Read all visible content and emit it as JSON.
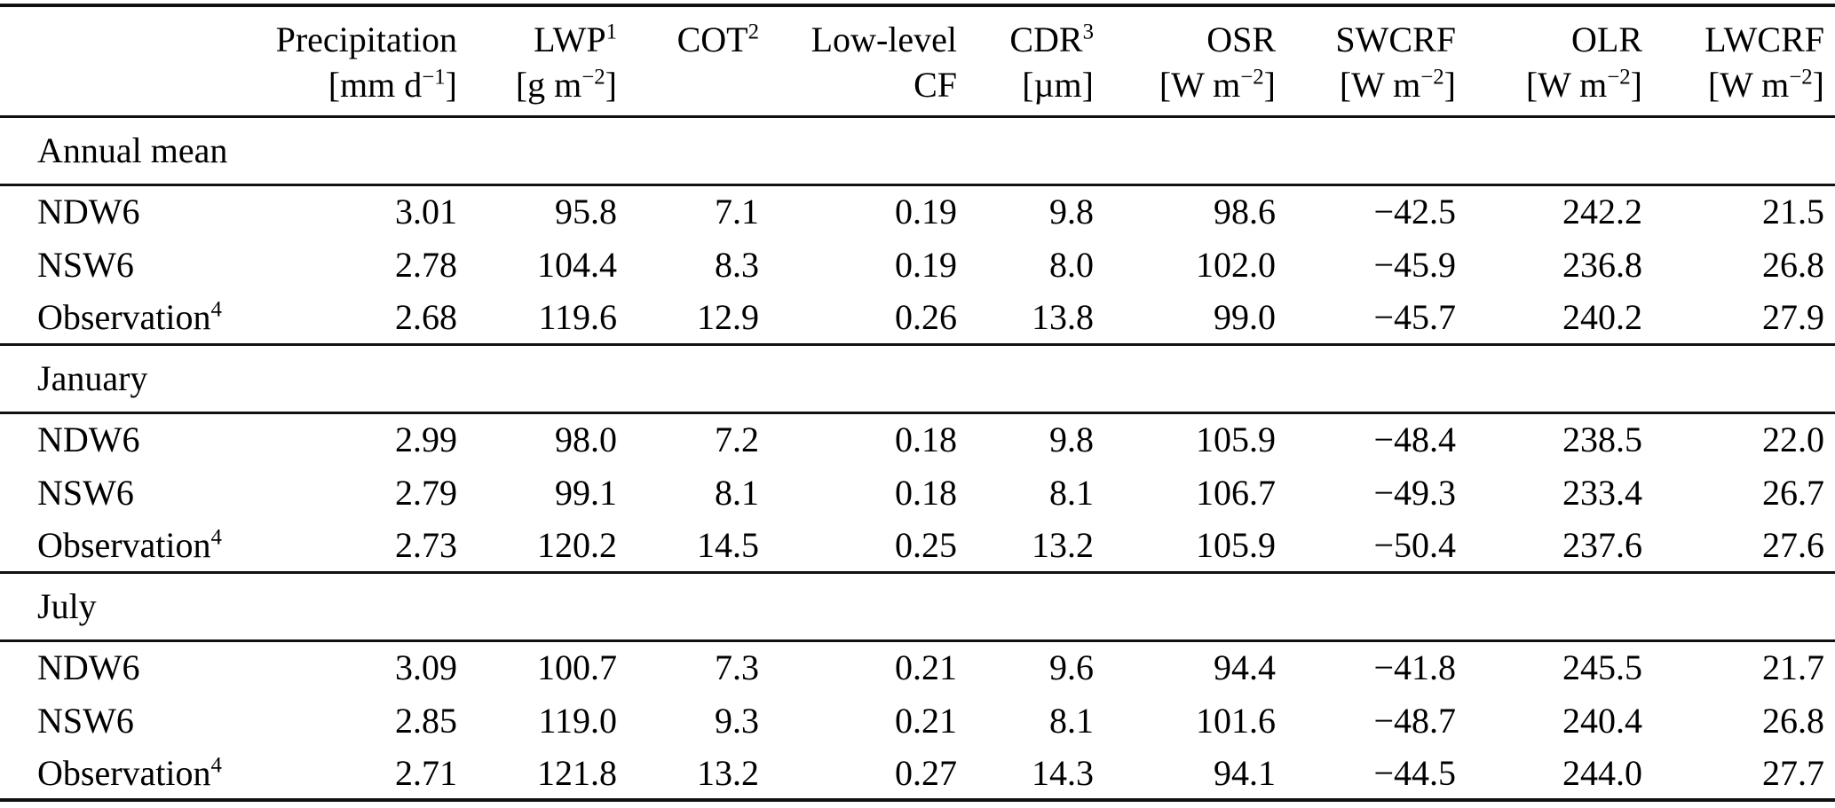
{
  "table": {
    "columns": [
      {
        "label": "",
        "unit": ""
      },
      {
        "label": "Precipitation",
        "unit": "[mm d<sup>−1</sup>]"
      },
      {
        "label": "LWP<sup>1</sup>",
        "unit": "[g m<sup>−2</sup>]"
      },
      {
        "label": "COT<sup>2</sup>",
        "unit": ""
      },
      {
        "label": "Low-level",
        "unit": "CF"
      },
      {
        "label": "CDR<sup>3</sup>",
        "unit": "[µm]"
      },
      {
        "label": "OSR",
        "unit": "[W m<sup>−2</sup>]"
      },
      {
        "label": "SWCRF",
        "unit": "[W m<sup>−2</sup>]"
      },
      {
        "label": "OLR",
        "unit": "[W m<sup>−2</sup>]"
      },
      {
        "label": "LWCRF",
        "unit": "[W m<sup>−2</sup>]"
      }
    ],
    "sections": [
      {
        "heading": "Annual mean",
        "rows": [
          {
            "label": "NDW6",
            "values": [
              "3.01",
              "95.8",
              "7.1",
              "0.19",
              "9.8",
              "98.6",
              "−42.5",
              "242.2",
              "21.5"
            ]
          },
          {
            "label": "NSW6",
            "values": [
              "2.78",
              "104.4",
              "8.3",
              "0.19",
              "8.0",
              "102.0",
              "−45.9",
              "236.8",
              "26.8"
            ]
          },
          {
            "label": "Observation<sup>4</sup>",
            "values": [
              "2.68",
              "119.6",
              "12.9",
              "0.26",
              "13.8",
              "99.0",
              "−45.7",
              "240.2",
              "27.9"
            ]
          }
        ]
      },
      {
        "heading": "January",
        "rows": [
          {
            "label": "NDW6",
            "values": [
              "2.99",
              "98.0",
              "7.2",
              "0.18",
              "9.8",
              "105.9",
              "−48.4",
              "238.5",
              "22.0"
            ]
          },
          {
            "label": "NSW6",
            "values": [
              "2.79",
              "99.1",
              "8.1",
              "0.18",
              "8.1",
              "106.7",
              "−49.3",
              "233.4",
              "26.7"
            ]
          },
          {
            "label": "Observation<sup>4</sup>",
            "values": [
              "2.73",
              "120.2",
              "14.5",
              "0.25",
              "13.2",
              "105.9",
              "−50.4",
              "237.6",
              "27.6"
            ]
          }
        ]
      },
      {
        "heading": "July",
        "rows": [
          {
            "label": "NDW6",
            "values": [
              "3.09",
              "100.7",
              "7.3",
              "0.21",
              "9.6",
              "94.4",
              "−41.8",
              "245.5",
              "21.7"
            ]
          },
          {
            "label": "NSW6",
            "values": [
              "2.85",
              "119.0",
              "9.3",
              "0.21",
              "8.1",
              "101.6",
              "−48.7",
              "240.4",
              "26.8"
            ]
          },
          {
            "label": "Observation<sup>4</sup>",
            "values": [
              "2.71",
              "121.8",
              "13.2",
              "0.27",
              "14.3",
              "94.1",
              "−44.5",
              "244.0",
              "27.7"
            ]
          }
        ]
      }
    ]
  }
}
